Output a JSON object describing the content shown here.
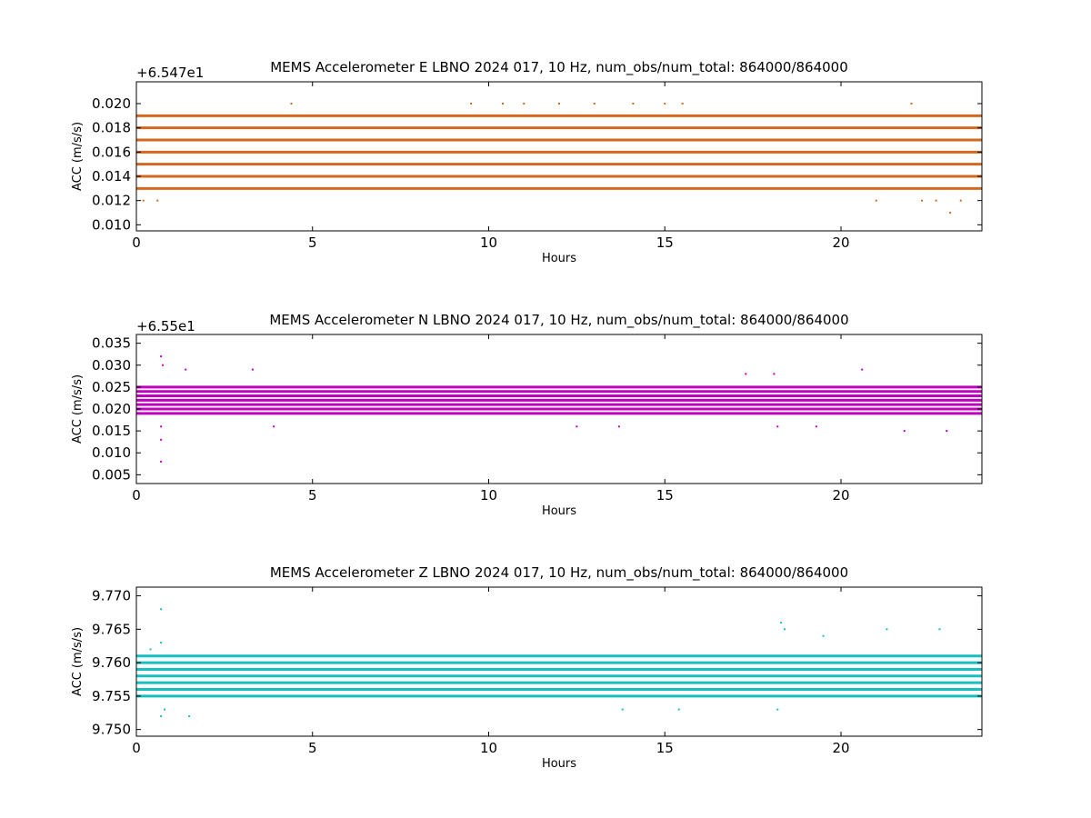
{
  "chart_data": [
    {
      "type": "scatter",
      "title": "MEMS Accelerometer E LBNO 2024 017, 10 Hz, num_obs/num_total: 864000/864000",
      "offset_label": "+6.547e1",
      "xlabel": "Hours",
      "ylabel": "ACC (m/s/s)",
      "xlim": [
        0,
        24
      ],
      "ylim": [
        0.0095,
        0.0218
      ],
      "x_ticks": [
        "0",
        "5",
        "10",
        "15",
        "20"
      ],
      "y_ticks": [
        "0.010",
        "0.012",
        "0.014",
        "0.016",
        "0.018",
        "0.020"
      ],
      "color": "#d2691e",
      "grid": false,
      "dense_levels": [
        0.013,
        0.014,
        0.015,
        0.016,
        0.017,
        0.018,
        0.019
      ],
      "sparse_points": [
        {
          "x": 0.2,
          "y": 0.012
        },
        {
          "x": 0.6,
          "y": 0.012
        },
        {
          "x": 4.4,
          "y": 0.02
        },
        {
          "x": 9.5,
          "y": 0.02
        },
        {
          "x": 10.4,
          "y": 0.02
        },
        {
          "x": 11.0,
          "y": 0.02
        },
        {
          "x": 12.0,
          "y": 0.02
        },
        {
          "x": 13.0,
          "y": 0.02
        },
        {
          "x": 14.1,
          "y": 0.02
        },
        {
          "x": 15.0,
          "y": 0.02
        },
        {
          "x": 15.5,
          "y": 0.02
        },
        {
          "x": 21.0,
          "y": 0.012
        },
        {
          "x": 22.0,
          "y": 0.02
        },
        {
          "x": 22.3,
          "y": 0.012
        },
        {
          "x": 22.7,
          "y": 0.012
        },
        {
          "x": 23.1,
          "y": 0.011
        },
        {
          "x": 23.4,
          "y": 0.012
        }
      ]
    },
    {
      "type": "scatter",
      "title": "MEMS Accelerometer N LBNO 2024 017, 10 Hz, num_obs/num_total: 864000/864000",
      "offset_label": "+6.55e1",
      "xlabel": "Hours",
      "ylabel": "ACC (m/s/s)",
      "xlim": [
        0,
        24
      ],
      "ylim": [
        0.003,
        0.037
      ],
      "x_ticks": [
        "0",
        "5",
        "10",
        "15",
        "20"
      ],
      "y_ticks": [
        "0.005",
        "0.010",
        "0.015",
        "0.020",
        "0.025",
        "0.030",
        "0.035"
      ],
      "color": "#bf00bf",
      "grid": false,
      "dense_levels": [
        0.019,
        0.02,
        0.021,
        0.022,
        0.023,
        0.024,
        0.025
      ],
      "sparse_points": [
        {
          "x": 0.7,
          "y": 0.032
        },
        {
          "x": 0.75,
          "y": 0.03
        },
        {
          "x": 0.7,
          "y": 0.016
        },
        {
          "x": 0.7,
          "y": 0.013
        },
        {
          "x": 0.7,
          "y": 0.008
        },
        {
          "x": 1.4,
          "y": 0.029
        },
        {
          "x": 3.3,
          "y": 0.029
        },
        {
          "x": 3.9,
          "y": 0.016
        },
        {
          "x": 12.5,
          "y": 0.016
        },
        {
          "x": 13.7,
          "y": 0.016
        },
        {
          "x": 18.2,
          "y": 0.016
        },
        {
          "x": 19.3,
          "y": 0.016
        },
        {
          "x": 20.6,
          "y": 0.029
        },
        {
          "x": 21.8,
          "y": 0.015
        },
        {
          "x": 23.0,
          "y": 0.015
        },
        {
          "x": 17.3,
          "y": 0.028
        },
        {
          "x": 18.1,
          "y": 0.028
        }
      ]
    },
    {
      "type": "scatter",
      "title": "MEMS Accelerometer Z LBNO 2024 017, 10 Hz, num_obs/num_total: 864000/864000",
      "offset_label": "",
      "xlabel": "Hours",
      "ylabel": "ACC (m/s/s)",
      "xlim": [
        0,
        24
      ],
      "ylim": [
        9.749,
        9.7713
      ],
      "x_ticks": [
        "0",
        "5",
        "10",
        "15",
        "20"
      ],
      "y_ticks": [
        "9.750",
        "9.755",
        "9.760",
        "9.765",
        "9.770"
      ],
      "color": "#17bfbf",
      "grid": false,
      "dense_levels": [
        9.755,
        9.756,
        9.757,
        9.758,
        9.759,
        9.76,
        9.761
      ],
      "sparse_points": [
        {
          "x": 0.7,
          "y": 9.768
        },
        {
          "x": 0.4,
          "y": 9.762
        },
        {
          "x": 0.7,
          "y": 9.763
        },
        {
          "x": 0.7,
          "y": 9.752
        },
        {
          "x": 0.8,
          "y": 9.753
        },
        {
          "x": 1.5,
          "y": 9.752
        },
        {
          "x": 18.3,
          "y": 9.766
        },
        {
          "x": 18.4,
          "y": 9.765
        },
        {
          "x": 18.2,
          "y": 9.753
        },
        {
          "x": 21.3,
          "y": 9.765
        },
        {
          "x": 22.8,
          "y": 9.765
        },
        {
          "x": 19.5,
          "y": 9.764
        },
        {
          "x": 13.8,
          "y": 9.753
        },
        {
          "x": 15.4,
          "y": 9.753
        }
      ]
    }
  ]
}
